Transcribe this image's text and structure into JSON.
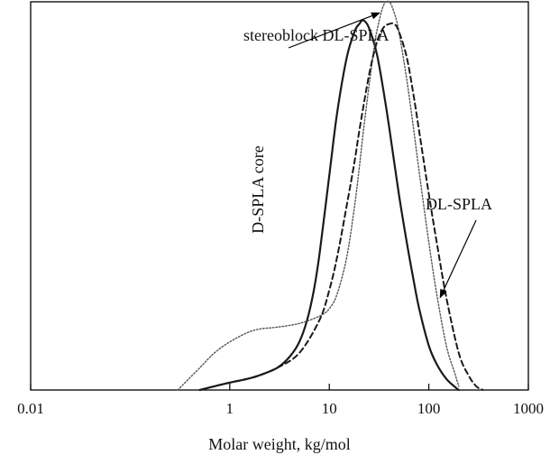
{
  "chart_data": {
    "type": "line",
    "title": "",
    "xlabel": "Molar weight, kg/mol",
    "ylabel": "",
    "x_scale": "log",
    "xlim": [
      0.01,
      1000
    ],
    "ylim": [
      0,
      1.05
    ],
    "x_ticks": [
      0.01,
      1,
      10,
      100,
      1000
    ],
    "x_tick_labels": [
      "0.01",
      "1",
      "10",
      "100",
      "1000"
    ],
    "grid": false,
    "legend": "none",
    "series": [
      {
        "name": "D-SPLA core",
        "style": "solid",
        "color": "#1a1a1a",
        "x": [
          0.5,
          0.7,
          1,
          1.5,
          2,
          3,
          4,
          5,
          6,
          7,
          8,
          10,
          12,
          15,
          18,
          20,
          22,
          25,
          30,
          35,
          40,
          50,
          60,
          70,
          80,
          100,
          120,
          150,
          180,
          200
        ],
        "y": [
          0.0,
          0.01,
          0.02,
          0.03,
          0.04,
          0.06,
          0.09,
          0.13,
          0.19,
          0.27,
          0.37,
          0.58,
          0.75,
          0.9,
          0.97,
          0.99,
          1.0,
          0.98,
          0.91,
          0.81,
          0.71,
          0.53,
          0.4,
          0.3,
          0.22,
          0.12,
          0.07,
          0.03,
          0.01,
          0.0
        ]
      },
      {
        "name": "stereoblock DL-SPLA",
        "style": "dotted",
        "color": "#555555",
        "x": [
          0.3,
          0.5,
          0.7,
          1,
          1.5,
          2,
          3,
          5,
          8,
          10,
          12,
          15,
          18,
          20,
          22,
          25,
          28,
          30,
          35,
          40,
          45,
          50,
          60,
          70,
          80,
          100,
          120,
          150,
          180,
          200
        ],
        "y": [
          0.0,
          0.06,
          0.1,
          0.13,
          0.155,
          0.165,
          0.17,
          0.18,
          0.2,
          0.22,
          0.26,
          0.36,
          0.5,
          0.6,
          0.7,
          0.82,
          0.92,
          0.97,
          1.04,
          1.05,
          1.02,
          0.97,
          0.84,
          0.71,
          0.59,
          0.4,
          0.26,
          0.12,
          0.05,
          0.01
        ]
      },
      {
        "name": "DL-SPLA",
        "style": "dashed",
        "color": "#1a1a1a",
        "x": [
          0.5,
          0.7,
          1,
          1.5,
          2,
          3,
          5,
          8,
          10,
          12,
          15,
          18,
          20,
          25,
          30,
          35,
          40,
          45,
          50,
          60,
          70,
          80,
          100,
          120,
          150,
          200,
          250,
          300,
          350
        ],
        "y": [
          0.0,
          0.01,
          0.02,
          0.03,
          0.04,
          0.06,
          0.1,
          0.19,
          0.27,
          0.36,
          0.5,
          0.62,
          0.7,
          0.85,
          0.94,
          0.98,
          0.99,
          0.99,
          0.97,
          0.9,
          0.8,
          0.7,
          0.53,
          0.4,
          0.25,
          0.1,
          0.04,
          0.01,
          0.0
        ]
      }
    ],
    "annotations": [
      {
        "text": "stereoblock DL-SPLA",
        "target_x": 32,
        "target_y": 1.02
      },
      {
        "text": "DL-SPLA",
        "target_x": 130,
        "target_y": 0.25
      },
      {
        "text": "D-SPLA core",
        "target_x": 11,
        "target_y": 0.6
      }
    ]
  }
}
